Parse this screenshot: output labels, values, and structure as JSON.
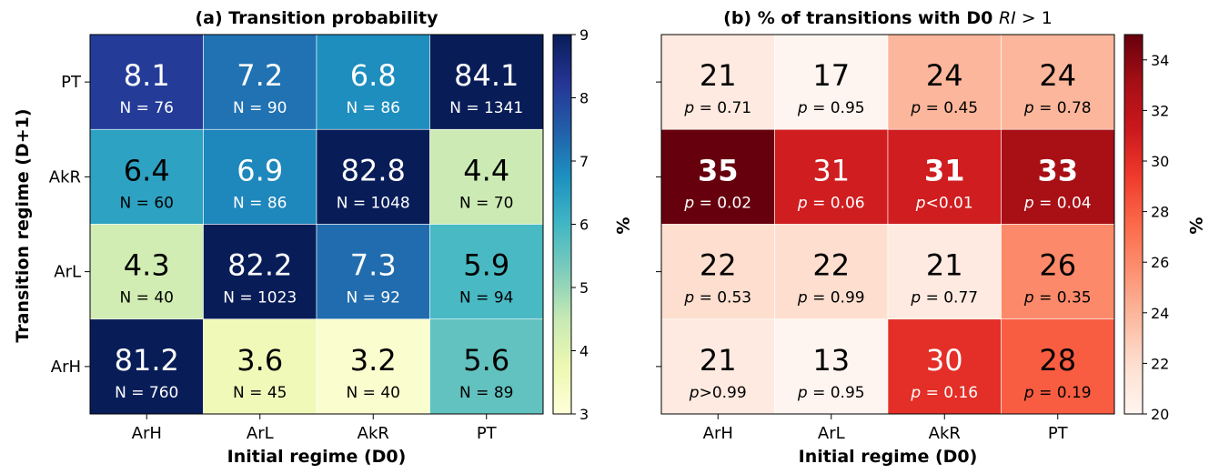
{
  "chart_data": [
    {
      "type": "heatmap",
      "title": "(a) Transition probability",
      "xlabel": "Initial regime (D0)",
      "ylabel": "Transition regime (D+1)",
      "x_categories": [
        "ArH",
        "ArL",
        "AkR",
        "PT"
      ],
      "y_categories": [
        "PT",
        "AkR",
        "ArL",
        "ArH"
      ],
      "values": [
        [
          8.1,
          7.2,
          6.8,
          84.1
        ],
        [
          6.4,
          6.9,
          82.8,
          4.4
        ],
        [
          4.3,
          82.2,
          7.3,
          5.9
        ],
        [
          81.2,
          3.6,
          3.2,
          5.6
        ]
      ],
      "value_labels": [
        [
          "8.1",
          "7.2",
          "6.8",
          "84.1"
        ],
        [
          "6.4",
          "6.9",
          "82.8",
          "4.4"
        ],
        [
          "4.3",
          "82.2",
          "7.3",
          "5.9"
        ],
        [
          "81.2",
          "3.6",
          "3.2",
          "5.6"
        ]
      ],
      "sub_labels": [
        [
          "N = 76",
          "N = 90",
          "N = 86",
          "N = 1341"
        ],
        [
          "N = 60",
          "N = 86",
          "N = 1048",
          "N = 70"
        ],
        [
          "N = 40",
          "N = 1023",
          "N = 92",
          "N = 94"
        ],
        [
          "N = 760",
          "N = 45",
          "N = 40",
          "N = 89"
        ]
      ],
      "colormap": "YlGnBu",
      "color_range": [
        3,
        9
      ],
      "colorbar": {
        "label": "%",
        "ticks": [
          3,
          4,
          5,
          6,
          7,
          8,
          9
        ],
        "tick_labels": [
          "3",
          "4",
          "5",
          "6",
          "7",
          "8",
          "9"
        ]
      }
    },
    {
      "type": "heatmap",
      "title_prefix": "(b) % of transitions with D0 ",
      "title_math": "RI",
      "title_suffix": " > 1",
      "xlabel": "Initial regime (D0)",
      "x_categories": [
        "ArH",
        "ArL",
        "AkR",
        "PT"
      ],
      "y_categories": [
        "PT",
        "AkR",
        "ArL",
        "ArH"
      ],
      "values": [
        [
          21,
          17,
          24,
          24
        ],
        [
          35,
          31,
          31,
          33
        ],
        [
          22,
          22,
          21,
          26
        ],
        [
          21,
          13,
          30,
          28
        ]
      ],
      "value_labels": [
        [
          "21",
          "17",
          "24",
          "24"
        ],
        [
          "35",
          "31",
          "31",
          "33"
        ],
        [
          "22",
          "22",
          "21",
          "26"
        ],
        [
          "21",
          "13",
          "30",
          "28"
        ]
      ],
      "bold": [
        [
          false,
          false,
          false,
          false
        ],
        [
          true,
          false,
          true,
          true
        ],
        [
          false,
          false,
          false,
          false
        ],
        [
          false,
          false,
          false,
          false
        ]
      ],
      "p_labels": [
        [
          "= 0.71",
          "= 0.95",
          "= 0.45",
          "= 0.78"
        ],
        [
          "= 0.02",
          "= 0.06",
          "<0.01",
          "= 0.04"
        ],
        [
          "= 0.53",
          "= 0.99",
          "= 0.77",
          "= 0.35"
        ],
        [
          ">0.99",
          "= 0.95",
          "= 0.16",
          "= 0.19"
        ]
      ],
      "p_symbol": "p",
      "colormap": "Reds",
      "color_range": [
        20,
        35
      ],
      "colorbar": {
        "label": "%",
        "ticks": [
          20,
          22,
          24,
          26,
          28,
          30,
          32,
          34
        ],
        "tick_labels": [
          "20",
          "22",
          "24",
          "26",
          "28",
          "30",
          "32",
          "34"
        ]
      }
    }
  ]
}
